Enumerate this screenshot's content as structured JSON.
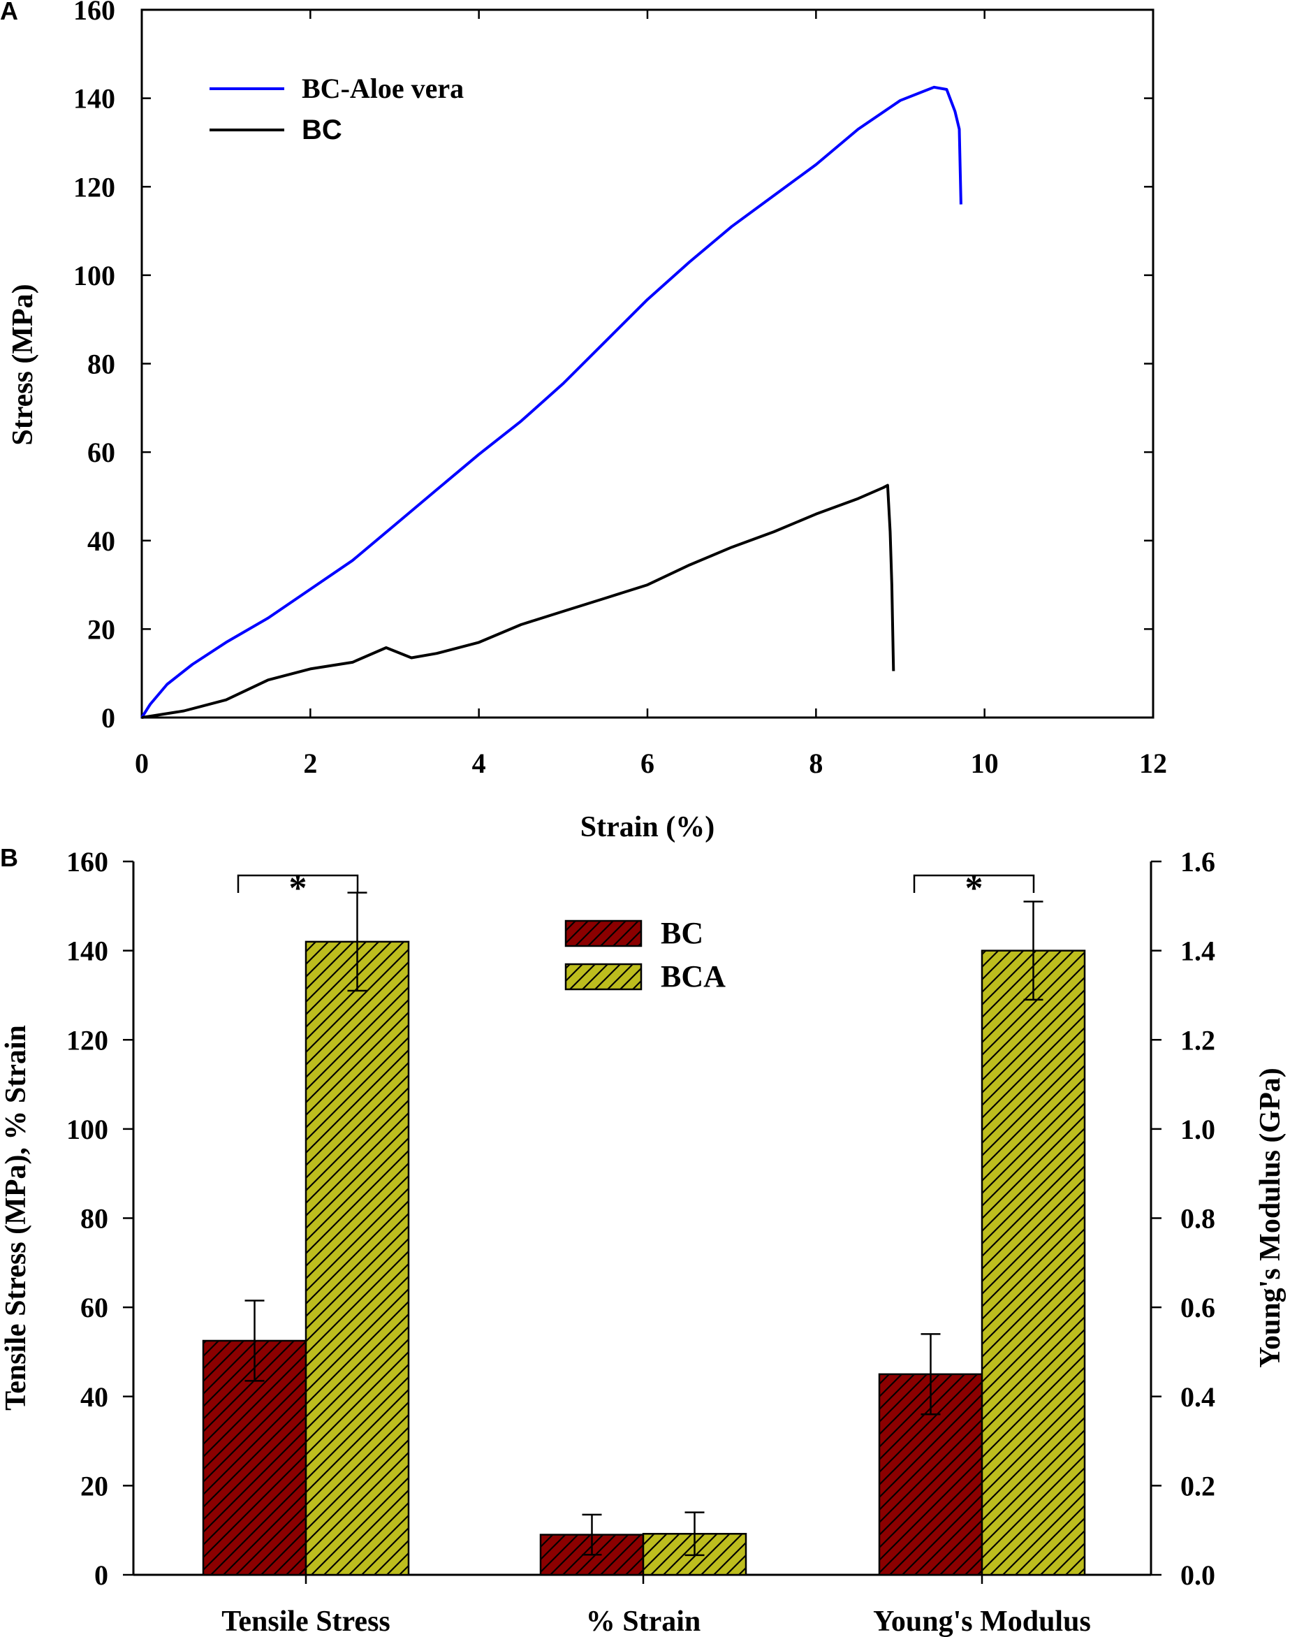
{
  "chart_data": [
    {
      "panel": "A",
      "type": "line",
      "title": "",
      "xlabel": "Strain (%)",
      "ylabel": "Stress (MPa)",
      "xlim": [
        0,
        12
      ],
      "ylim": [
        0,
        160
      ],
      "xticks": [
        0,
        2,
        4,
        6,
        8,
        10,
        12
      ],
      "yticks": [
        0,
        20,
        40,
        60,
        80,
        100,
        120,
        140,
        160
      ],
      "grid": false,
      "legend_position": "top-left",
      "series": [
        {
          "name": "BC-Aloe vera",
          "color": "#0000ff",
          "points": [
            [
              0,
              0
            ],
            [
              0.1,
              3
            ],
            [
              0.3,
              7.5
            ],
            [
              0.6,
              12
            ],
            [
              1,
              17
            ],
            [
              1.5,
              22.5
            ],
            [
              2,
              29
            ],
            [
              2.5,
              35.5
            ],
            [
              3,
              43.5
            ],
            [
              3.5,
              51.5
            ],
            [
              4,
              59.5
            ],
            [
              4.5,
              67
            ],
            [
              5,
              75.5
            ],
            [
              5.5,
              85
            ],
            [
              6,
              94.5
            ],
            [
              6.5,
              103
            ],
            [
              7,
              111
            ],
            [
              7.5,
              118
            ],
            [
              8,
              125
            ],
            [
              8.5,
              133
            ],
            [
              9,
              139.5
            ],
            [
              9.4,
              142.5
            ],
            [
              9.55,
              142
            ],
            [
              9.65,
              137
            ],
            [
              9.7,
              133
            ],
            [
              9.72,
              116
            ]
          ]
        },
        {
          "name": "BC",
          "color": "#000000",
          "points": [
            [
              0,
              0
            ],
            [
              0.5,
              1.5
            ],
            [
              1,
              4
            ],
            [
              1.5,
              8.5
            ],
            [
              2,
              11
            ],
            [
              2.5,
              12.5
            ],
            [
              2.9,
              15.8
            ],
            [
              3.2,
              13.5
            ],
            [
              3.5,
              14.5
            ],
            [
              4,
              17
            ],
            [
              4.5,
              21
            ],
            [
              5,
              24
            ],
            [
              5.5,
              27
            ],
            [
              6,
              30
            ],
            [
              6.5,
              34.5
            ],
            [
              7,
              38.5
            ],
            [
              7.5,
              42
            ],
            [
              8,
              46
            ],
            [
              8.5,
              49.5
            ],
            [
              8.8,
              52
            ],
            [
              8.85,
              52.5
            ],
            [
              8.88,
              42
            ],
            [
              8.9,
              30
            ],
            [
              8.92,
              10.5
            ]
          ]
        }
      ]
    },
    {
      "panel": "B",
      "type": "bar",
      "title": "",
      "xlabel": "",
      "ylabel": "Tensile Stress (MPa), % Strain",
      "ylabel_right": "Young's Modulus (GPa)",
      "ylim": [
        0,
        160
      ],
      "ylim_right": [
        0.0,
        1.6
      ],
      "yticks": [
        0,
        20,
        40,
        60,
        80,
        100,
        120,
        140,
        160
      ],
      "yticks_right": [
        "0.0",
        "0.2",
        "0.4",
        "0.6",
        "0.8",
        "1.0",
        "1.2",
        "1.4",
        "1.6"
      ],
      "categories": [
        "Tensile Stress",
        "% Strain",
        "Young's Modulus"
      ],
      "legend_position": "top-center",
      "series": [
        {
          "name": "BC",
          "color": "#8b0000",
          "values": [
            52.5,
            9,
            45
          ],
          "errors": [
            9,
            4.5,
            9
          ]
        },
        {
          "name": "BCA",
          "color": "#bdbd1e",
          "values": [
            142,
            9.2,
            140
          ],
          "errors": [
            11,
            4.8,
            11
          ]
        }
      ],
      "significance": [
        {
          "category": "Tensile Stress",
          "label": "*"
        },
        {
          "category": "Young's Modulus",
          "label": "*"
        }
      ]
    }
  ],
  "panel_labels": [
    "A",
    "B"
  ]
}
